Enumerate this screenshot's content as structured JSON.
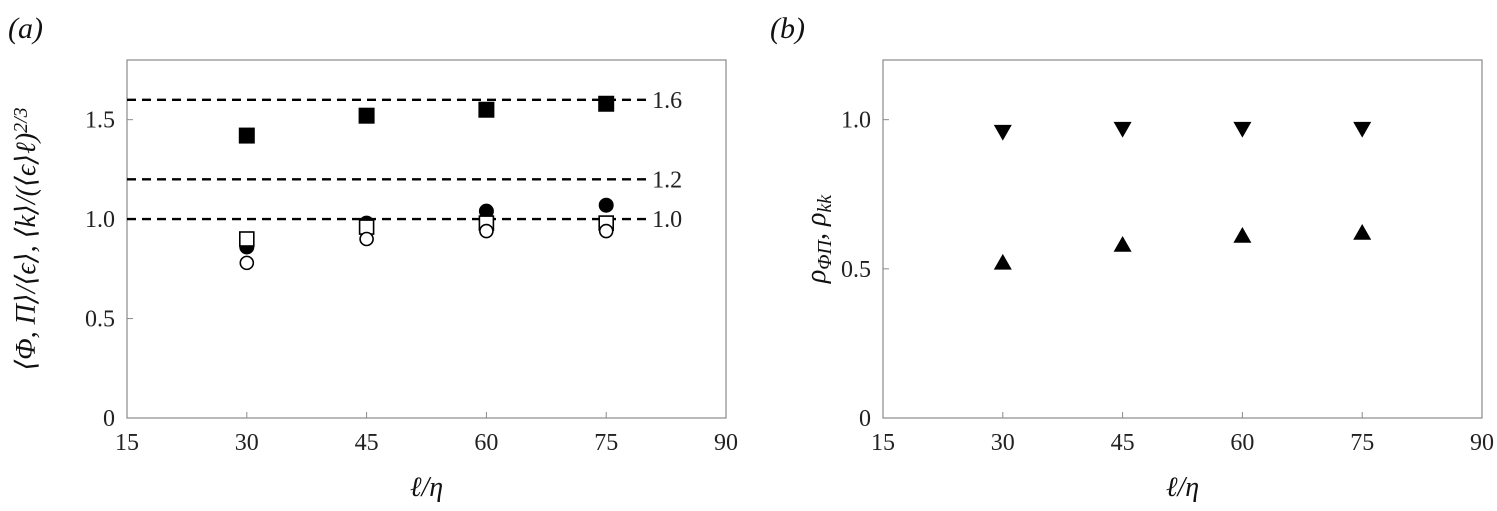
{
  "chart_data": [
    {
      "type": "scatter",
      "panel_label": "(a)",
      "xlabel": "ℓ/η",
      "ylabel": "⟨Φ, Π⟩/⟨ϵ⟩, ⟨k⟩/(⟨ϵ⟩ℓ)^{2/3}",
      "xlim": [
        15,
        90
      ],
      "ylim": [
        0,
        1.8
      ],
      "xticks": [
        "15",
        "30",
        "45",
        "60",
        "75",
        "90"
      ],
      "yticks": [
        "0",
        "0.5",
        "1.0",
        "1.5"
      ],
      "grid": false,
      "reference_lines": [
        {
          "y": 1.6,
          "label": "1.6"
        },
        {
          "y": 1.2,
          "label": "1.2"
        },
        {
          "y": 1.0,
          "label": "1.0"
        }
      ],
      "series": [
        {
          "marker": "filled-square",
          "x": [
            30,
            45,
            60,
            75
          ],
          "y": [
            1.42,
            1.52,
            1.55,
            1.58
          ]
        },
        {
          "marker": "filled-circle",
          "x": [
            30,
            45,
            60,
            75
          ],
          "y": [
            0.86,
            0.98,
            1.04,
            1.07
          ]
        },
        {
          "marker": "open-square",
          "x": [
            30,
            45,
            60,
            75
          ],
          "y": [
            0.9,
            0.96,
            0.98,
            0.98
          ]
        },
        {
          "marker": "open-circle",
          "x": [
            30,
            45,
            60,
            75
          ],
          "y": [
            0.78,
            0.9,
            0.94,
            0.94
          ]
        }
      ]
    },
    {
      "type": "scatter",
      "panel_label": "(b)",
      "xlabel": "ℓ/η",
      "ylabel": "ρ_{ΦΠ}, ρ_{kk}",
      "xlim": [
        15,
        90
      ],
      "ylim": [
        0,
        1.2
      ],
      "xticks": [
        "15",
        "30",
        "45",
        "60",
        "75",
        "90"
      ],
      "yticks": [
        "0",
        "0.5",
        "1.0"
      ],
      "grid": false,
      "series": [
        {
          "marker": "filled-triangle-down",
          "x": [
            30,
            45,
            60,
            75
          ],
          "y": [
            0.96,
            0.97,
            0.97,
            0.97
          ]
        },
        {
          "marker": "filled-triangle-up",
          "x": [
            30,
            45,
            60,
            75
          ],
          "y": [
            0.52,
            0.58,
            0.61,
            0.62
          ]
        }
      ]
    }
  ]
}
